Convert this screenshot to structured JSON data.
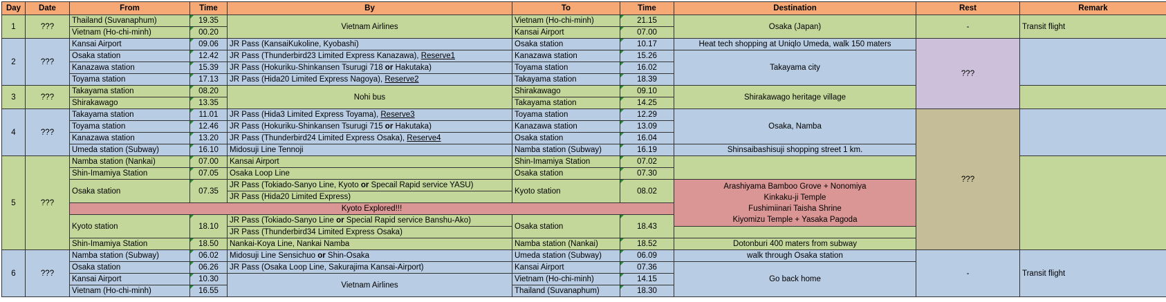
{
  "headers": {
    "day": "Day",
    "date": "Date",
    "from": "From",
    "time1": "Time",
    "by": "By",
    "to": "To",
    "time2": "Time",
    "destination": "Destination",
    "rest": "Rest",
    "remark": "Remark"
  },
  "day1": {
    "day": "1",
    "date": "???",
    "by": "Vietnam Airlines",
    "destination": "Osaka (Japan)",
    "rest": "-",
    "remark": "Transit flight",
    "r1": {
      "from": "Thailand (Suvanaphum)",
      "t1": "19.35",
      "to": "Vietnam (Ho-chi-minh)",
      "t2": "21.15"
    },
    "r2": {
      "from": "Vietnam (Ho-chi-minh)",
      "t1": "00.20",
      "to": "Kansai Airport",
      "t2": "07.00"
    }
  },
  "day2": {
    "day": "2",
    "date": "???",
    "rest": "???",
    "destination_main": "Takayama city",
    "r1": {
      "from": "Kansai Airport",
      "t1": "09.06",
      "by": "JR Pass (KansaiKukoline, Kyobashi)",
      "to": "Osaka station",
      "t2": "10.17",
      "dest": "Heat tech shopping at Uniqlo Umeda, walk 150 maters"
    },
    "r2": {
      "from": "Osaka station",
      "t1": "12.42",
      "by": "JR Pass (Thunderbird23 Limited Express Kanazawa), ",
      "link": "Reserve1",
      "to": "Kanazawa station",
      "t2": "15.26"
    },
    "r3": {
      "from": "Kanazawa station",
      "t1": "15.39",
      "by_a": "JR Pass (Hokuriku-Shinkansen Tsurugi 718 ",
      "or": "or",
      "by_b": " Hakutaka)",
      "to": "Toyama station",
      "t2": "16.02"
    },
    "r4": {
      "from": "Toyama station",
      "t1": "17.13",
      "by": "JR Pass (Hida20 Limited Express Nagoya), ",
      "link": "Reserve2",
      "to": "Takayama station",
      "t2": "18.39"
    }
  },
  "day3": {
    "day": "3",
    "date": "???",
    "by": "Nohi bus",
    "destination": "Shirakawago heritage village",
    "r1": {
      "from": "Takayama station",
      "t1": "08.20",
      "to": "Shirakawago",
      "t2": "09.10"
    },
    "r2": {
      "from": "Shirakawago",
      "t1": "13.35",
      "to": "Takayama station",
      "t2": "14.25"
    }
  },
  "day4": {
    "day": "4",
    "date": "???",
    "destination_main": "Osaka, Namba",
    "rest": "???",
    "r1": {
      "from": "Takayama station",
      "t1": "11.01",
      "by": "JR Pass (Hida3 Limited Express Toyama), ",
      "link": "Reserve3",
      "to": "Toyama station",
      "t2": "12.29"
    },
    "r2": {
      "from": "Toyama station",
      "t1": "12.46",
      "by_a": "JR Pass (Hokuriku-Shinkansen Tsurugi 715 ",
      "or": "or",
      "by_b": " Hakutaka)",
      "to": "Kanazawa station",
      "t2": "13.09"
    },
    "r3": {
      "from": "Kanazawa station",
      "t1": "13.20",
      "by": "JR Pass (Thunderbird24 Limited Express Osaka), ",
      "link": "Reserve4",
      "to": "Osaka station",
      "t2": "16.04"
    },
    "r4": {
      "from": "Umeda station (Subway)",
      "t1": "16.10",
      "by": "Midosuji Line Tennoji",
      "to": "Namba station (Subway)",
      "t2": "16.19",
      "dest": "Shinsaibashisuji shopping street 1 km."
    }
  },
  "day5": {
    "day": "5",
    "date": "???",
    "r1": {
      "from": "Namba station (Nankai)",
      "t1": "07.00",
      "by": "Kansai Airport",
      "to": "Shin-Imamiya Station",
      "t2": "07.02"
    },
    "r2": {
      "from": "Shin-Imamiya Station",
      "t1": "07.05",
      "by": "Osaka Loop Line",
      "to": "Osaka station",
      "t2": "07.30"
    },
    "r3": {
      "from": "Osaka station",
      "t1": "07.35",
      "by1_a": "JR Pass (Tokiado-Sanyo Line, Kyoto ",
      "by1_or": "or",
      "by1_b": " Specail Rapid service YASU)",
      "by2": "JR Pass (Hida20 Limited Express)",
      "to": "Kyoto station",
      "t2": "08.02"
    },
    "kyoto": "Kyoto Explored!!!",
    "sights": [
      "Arashiyama Bamboo Grove + Nonomiya",
      "Kinkaku-ji Temple",
      "Fushimiinari Taisha Shrine",
      "Kiyomizu Temple + Yasaka Pagoda"
    ],
    "r4": {
      "from": "Kyoto station",
      "t1": "18.10",
      "by1_a": "JR Pass (Tokiado-Sanyo Line ",
      "by1_or": "or",
      "by1_b": " Special Rapid service Banshu-Ako)",
      "by2": "JR Pass (Thunderbird34 Limited Express Osaka)",
      "to": "Osaka station",
      "t2": "18.43"
    },
    "r5": {
      "from": "Shin-Imamiya Station",
      "t1": "18.50",
      "by": "Nankai-Koya Line, Nankai Namba",
      "to": "Namba station (Nankai)",
      "t2": "18.52",
      "dest": "Dotonburi 400 maters from subway"
    }
  },
  "day6": {
    "day": "6",
    "date": "???",
    "rest": "-",
    "remark": "Transit flight",
    "destination_main": "Go back home",
    "r1": {
      "from": "Namba station (Subway)",
      "t1": "06.02",
      "by_a": "Midosuji Line Sensichuo ",
      "or": "or",
      "by_b": " Shin-Osaka",
      "to": "Umeda station (Subway)",
      "t2": "06.09",
      "dest": "walk through Osaka station"
    },
    "r2": {
      "from": "Osaka station",
      "t1": "06.26",
      "by": "JR Pass (Osaka Loop Line, Sakurajima Kansai-Airport)",
      "to": "Kansai Airport",
      "t2": "07.36"
    },
    "r3": {
      "from": "Kansai Airport",
      "t1": "10.30",
      "to": "Vietnam (Ho-chi-minh)",
      "t2": "14.15"
    },
    "r4": {
      "from": "Vietnam (Ho-chi-minh)",
      "t1": "16.55",
      "to": "Thailand (Suvanaphum)",
      "t2": "18.30"
    },
    "by": "Vietnam Airlines"
  },
  "colors": {
    "header": "#f6a974",
    "green": "#c4d79b",
    "blue": "#b8cce4",
    "red": "#da9694",
    "purple": "#ccc0da",
    "tan": "#c4bd97"
  }
}
